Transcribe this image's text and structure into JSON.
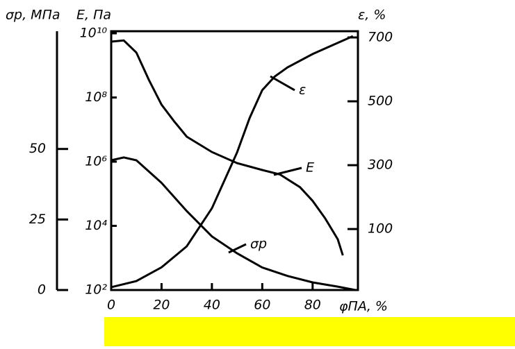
{
  "chart_data": {
    "type": "line",
    "xlabel": "φПА, %",
    "ylabel": "E, Па",
    "y2label": "ε, %",
    "y3label": "σp, МПа",
    "xlim": [
      0,
      98
    ],
    "xticks": [
      0,
      20,
      40,
      60,
      80
    ],
    "ylim": [
      100,
      10000000000
    ],
    "log_y": true,
    "yticks": [
      {
        "value": 100,
        "label": "10²"
      },
      {
        "value": 10000,
        "label": "10⁴"
      },
      {
        "value": 1000000,
        "label": "10⁶"
      },
      {
        "value": 100000000,
        "label": "10⁸"
      },
      {
        "value": 10000000000,
        "label": "10¹⁰"
      }
    ],
    "y2lim": [
      -91,
      713
    ],
    "y2ticks": [
      100,
      300,
      500,
      700
    ],
    "y3lim": [
      0,
      91
    ],
    "y3ticks": [
      0,
      25,
      50
    ],
    "series": [
      {
        "name": "E",
        "color": "#000000",
        "axis": "y",
        "x": [
          0,
          5,
          10,
          15,
          20,
          25,
          30,
          40,
          50,
          60,
          67,
          75,
          80,
          85,
          90,
          92
        ],
        "values": [
          5500000000,
          6000000000,
          2500000000,
          350000000,
          60000000,
          18000000,
          6000000,
          2000000,
          900000,
          550000,
          400000,
          160000,
          60000,
          17000,
          3800,
          1200
        ]
      },
      {
        "name": "ε",
        "color": "#000000",
        "axis": "y2",
        "x": [
          0,
          10,
          20,
          30,
          40,
          50,
          55,
          60,
          65,
          70,
          80,
          90,
          96
        ],
        "values": [
          -82,
          -63,
          -20,
          46,
          165,
          340,
          448,
          535,
          578,
          606,
          648,
          683,
          704
        ]
      },
      {
        "name": "σp",
        "color": "#000000",
        "axis": "y3",
        "x": [
          0,
          5,
          10,
          20,
          30,
          40,
          50,
          60,
          70,
          80,
          90,
          97
        ],
        "values": [
          46,
          47,
          46,
          38,
          28,
          19,
          13,
          8,
          5,
          2.7,
          1.2,
          0
        ]
      }
    ]
  }
}
